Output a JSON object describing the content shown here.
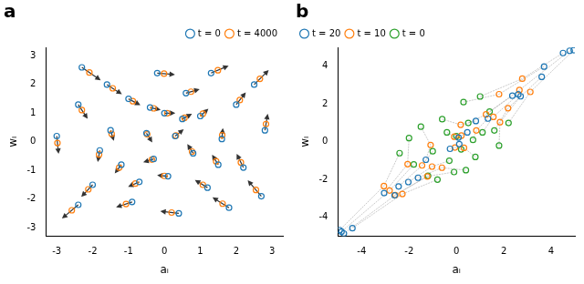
{
  "chart_data": [
    {
      "type": "scatter",
      "title": "a",
      "x_label": "aᵢ",
      "y_label": "wᵢ",
      "xlim": [
        -3.3,
        3.3
      ],
      "xticks": [
        -3,
        -2,
        -1,
        0,
        1,
        2,
        3
      ],
      "ylim": [
        -3.3,
        3.3
      ],
      "yticks": [
        -3,
        -2,
        -1,
        0,
        1,
        2,
        3
      ],
      "grid": false,
      "legend": "upper right",
      "series": [
        {
          "name": "t = 0",
          "color": "#1f77b4",
          "marker": "circle",
          "values": [
            [
              -3.0,
              0.2
            ],
            [
              -2.3,
              2.6
            ],
            [
              -2.4,
              1.3
            ],
            [
              -2.0,
              -1.5
            ],
            [
              -2.4,
              -2.2
            ],
            [
              -1.6,
              2.0
            ],
            [
              -1.5,
              0.4
            ],
            [
              -1.2,
              -0.8
            ],
            [
              -1.0,
              1.5
            ],
            [
              -0.9,
              -2.1
            ],
            [
              -0.5,
              0.3
            ],
            [
              -0.3,
              -0.6
            ],
            [
              -0.2,
              2.4
            ],
            [
              0.0,
              1.0
            ],
            [
              0.1,
              -1.2
            ],
            [
              0.3,
              0.2
            ],
            [
              0.4,
              -2.5
            ],
            [
              0.6,
              1.7
            ],
            [
              0.8,
              -0.4
            ],
            [
              1.0,
              0.9
            ],
            [
              1.2,
              -1.6
            ],
            [
              1.3,
              2.4
            ],
            [
              1.6,
              0.1
            ],
            [
              1.8,
              -2.3
            ],
            [
              2.0,
              1.3
            ],
            [
              2.2,
              -0.9
            ],
            [
              2.5,
              2.0
            ],
            [
              2.7,
              -1.9
            ],
            [
              2.8,
              0.4
            ],
            [
              -0.7,
              -1.4
            ],
            [
              0.5,
              0.8
            ],
            [
              -1.8,
              -0.3
            ],
            [
              1.5,
              -0.8
            ],
            [
              -0.4,
              1.2
            ]
          ]
        },
        {
          "name": "t = 4000",
          "color": "#ff7f0e",
          "marker": "circle",
          "values": [
            [
              -2.98,
              -0.04
            ],
            [
              -2.09,
              2.42
            ],
            [
              -2.3,
              1.11
            ],
            [
              -2.12,
              -1.66
            ],
            [
              -2.58,
              -2.39
            ],
            [
              -1.44,
              1.87
            ],
            [
              -1.47,
              0.28
            ],
            [
              -1.26,
              -0.9
            ],
            [
              -0.88,
              1.42
            ],
            [
              -1.07,
              -2.17
            ],
            [
              -0.48,
              0.26
            ],
            [
              -0.35,
              -0.62
            ],
            [
              -0.01,
              2.38
            ],
            [
              0.08,
              1.0
            ],
            [
              0.0,
              -1.19
            ],
            [
              0.32,
              0.22
            ],
            [
              0.2,
              -2.47
            ],
            [
              0.74,
              1.75
            ],
            [
              0.77,
              -0.34
            ],
            [
              1.07,
              0.98
            ],
            [
              1.07,
              -1.5
            ],
            [
              1.49,
              2.5
            ],
            [
              1.61,
              0.23
            ],
            [
              1.62,
              -2.16
            ],
            [
              2.1,
              1.46
            ],
            [
              2.13,
              -0.72
            ],
            [
              2.66,
              2.2
            ],
            [
              2.55,
              -1.68
            ],
            [
              2.83,
              0.62
            ],
            [
              -0.81,
              -1.46
            ],
            [
              0.56,
              0.84
            ],
            [
              -1.82,
              -0.44
            ],
            [
              1.44,
              -0.68
            ],
            [
              -0.3,
              1.17
            ]
          ]
        }
      ]
    },
    {
      "type": "scatter",
      "title": "b",
      "x_label": "aᵢ",
      "y_label": "wᵢ",
      "xlim": [
        -5,
        5
      ],
      "xticks": [
        -4,
        -2,
        0,
        2,
        4
      ],
      "ylim": [
        -5,
        5
      ],
      "yticks": [
        -4,
        -2,
        0,
        2,
        4
      ],
      "grid": false,
      "legend": "upper left",
      "series": [
        {
          "name": "t = 20",
          "color": "#1f77b4",
          "marker": "circle",
          "values": [
            [
              -1.29,
              -0.95
            ],
            [
              -2.44,
              -2.36
            ],
            [
              0.82,
              1.1
            ],
            [
              -2.03,
              -2.13
            ],
            [
              0.46,
              0.5
            ],
            [
              -0.27,
              -0.37
            ],
            [
              2.36,
              2.44
            ],
            [
              0.12,
              -0.12
            ],
            [
              2.61,
              2.51
            ],
            [
              4.78,
              4.82
            ],
            [
              -4.85,
              -4.75
            ],
            [
              -4.39,
              -4.57
            ],
            [
              3.7,
              3.98
            ],
            [
              2.71,
              2.41
            ],
            [
              -3.05,
              -2.71
            ],
            [
              1.33,
              1.23
            ],
            [
              0.09,
              0.23
            ],
            [
              4.95,
              4.85
            ],
            [
              -4.75,
              -4.85
            ],
            [
              4.5,
              4.7
            ],
            [
              -2.61,
              -2.83
            ],
            [
              -1.62,
              -1.9
            ],
            [
              -4.93,
              -4.67
            ],
            [
              3.6,
              3.44
            ]
          ]
        },
        {
          "name": "t = 10",
          "color": "#ff7f0e",
          "marker": "circle",
          "values": [
            [
              -1.09,
              -0.17
            ],
            [
              -1.45,
              -1.25
            ],
            [
              0.18,
              0.9
            ],
            [
              -1.03,
              -1.31
            ],
            [
              0.21,
              0.33
            ],
            [
              -0.06,
              -0.3
            ],
            [
              1.25,
              1.45
            ],
            [
              0.32,
              -0.32
            ],
            [
              1.56,
              1.32
            ],
            [
              2.66,
              2.74
            ],
            [
              -2.82,
              -2.58
            ],
            [
              -2.28,
              -2.76
            ],
            [
              1.8,
              2.52
            ],
            [
              1.84,
              1.04
            ],
            [
              -2.06,
              -1.18
            ],
            [
              0.84,
              0.6
            ],
            [
              -0.09,
              0.27
            ],
            [
              3.12,
              2.64
            ],
            [
              -2.58,
              -2.82
            ],
            [
              2.78,
              3.34
            ],
            [
              -1.23,
              -1.83
            ],
            [
              -0.61,
              -1.37
            ],
            [
              -3.06,
              -2.34
            ],
            [
              2.18,
              1.78
            ]
          ]
        },
        {
          "name": "t = 0",
          "color": "#2ca02c",
          "marker": "circle",
          "values": [
            [
              -1.5,
              0.8
            ],
            [
              -1.0,
              -0.5
            ],
            [
              -0.6,
              1.2
            ],
            [
              -0.3,
              -1.0
            ],
            [
              0.0,
              0.3
            ],
            [
              0.2,
              -0.4
            ],
            [
              0.5,
              1.0
            ],
            [
              0.8,
              -0.8
            ],
            [
              1.1,
              0.5
            ],
            [
              1.4,
              1.6
            ],
            [
              -1.8,
              -1.2
            ],
            [
              -0.8,
              -2.0
            ],
            [
              0.3,
              2.1
            ],
            [
              1.8,
              -0.2
            ],
            [
              -2.0,
              0.2
            ],
            [
              0.7,
              0.1
            ],
            [
              -0.4,
              0.5
            ],
            [
              2.2,
              1.0
            ],
            [
              -1.2,
              -1.8
            ],
            [
              1.0,
              2.4
            ],
            [
              -0.1,
              -1.6
            ],
            [
              0.4,
              -1.5
            ],
            [
              -2.4,
              -0.6
            ],
            [
              1.6,
              0.6
            ]
          ]
        }
      ]
    }
  ]
}
